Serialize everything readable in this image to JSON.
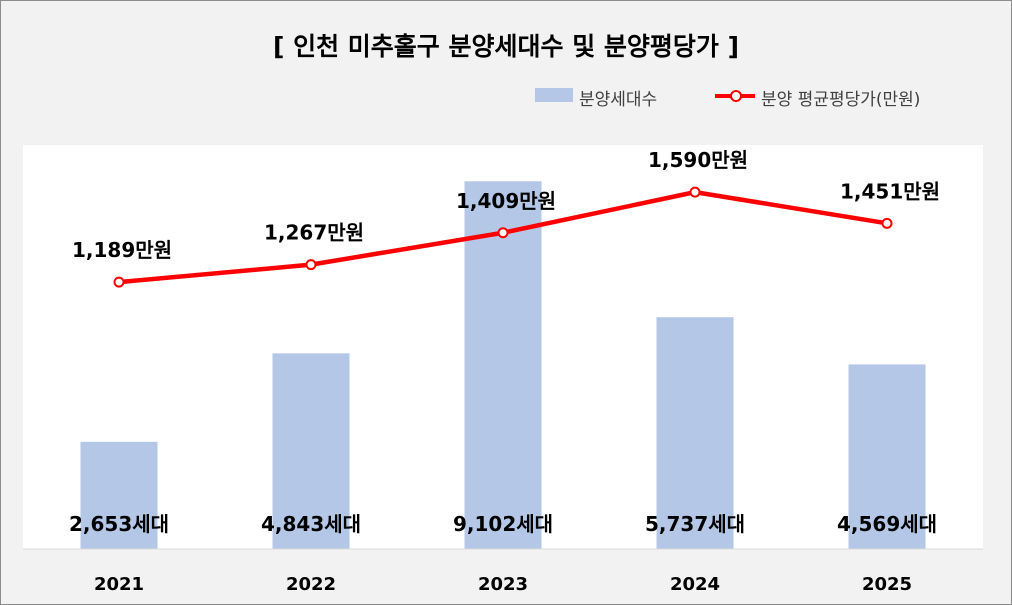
{
  "chart_data": {
    "type": "bar",
    "title": "[ 인천 미추홀구 분양세대수 및 분양평당가 ]",
    "categories": [
      "2021",
      "2022",
      "2023",
      "2024",
      "2025"
    ],
    "series": [
      {
        "name": "분양세대수",
        "type": "bar",
        "values": [
          2653,
          4843,
          9102,
          5737,
          4569
        ],
        "labels": [
          "2,653세대",
          "4,843세대",
          "9,102세대",
          "5,737세대",
          "4,569세대"
        ],
        "color": "#b4c7e7"
      },
      {
        "name": "분양 평균평당가(만원)",
        "type": "line",
        "values": [
          1189,
          1267,
          1409,
          1590,
          1451
        ],
        "labels": [
          "1,189만원",
          "1,267만원",
          "1,409만원",
          "1,590만원",
          "1,451만원"
        ],
        "color": "#ff0000"
      }
    ],
    "grid": false,
    "legend_position": "top-right"
  }
}
